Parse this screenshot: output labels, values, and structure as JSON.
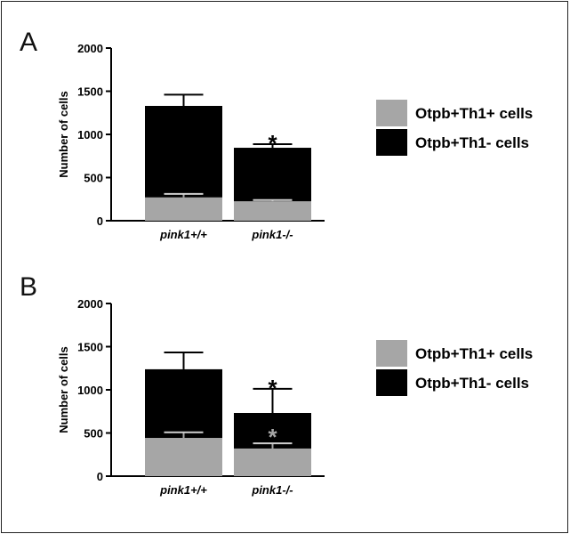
{
  "chart_data": [
    {
      "type": "bar",
      "stacked": true,
      "panel_label": "A",
      "ylabel": "Number of cells",
      "ylim": [
        0,
        2000
      ],
      "yticks": [
        "0",
        "500",
        "1000",
        "1500",
        "2000"
      ],
      "categories": [
        "pink1+/+",
        "pink1-/-"
      ],
      "series": [
        {
          "name": "Otpb+Th1+ cells",
          "color": "#a6a6a6",
          "values": [
            270,
            225
          ],
          "error_upper": [
            40,
            15
          ]
        },
        {
          "name": "Otpb+Th1- cells",
          "color": "#000000",
          "values": [
            1060,
            620
          ],
          "error_upper": [
            130,
            42
          ]
        }
      ],
      "annotations": [
        {
          "category": "pink1-/-",
          "text": "*",
          "over": "total",
          "color": "#000000"
        }
      ],
      "legend": "right"
    },
    {
      "type": "bar",
      "stacked": true,
      "panel_label": "B",
      "ylabel": "Number of cells",
      "ylim": [
        0,
        2000
      ],
      "yticks": [
        "0",
        "500",
        "1000",
        "1500",
        "2000"
      ],
      "categories": [
        "pink1+/+",
        "pink1-/-"
      ],
      "series": [
        {
          "name": "Otpb+Th1+ cells",
          "color": "#a6a6a6",
          "values": [
            443,
            320
          ],
          "error_upper": [
            65,
            60
          ]
        },
        {
          "name": "Otpb+Th1- cells",
          "color": "#000000",
          "values": [
            795,
            412
          ],
          "error_upper": [
            195,
            280
          ]
        }
      ],
      "annotations": [
        {
          "category": "pink1-/-",
          "text": "*",
          "over": "total",
          "color": "#000000"
        },
        {
          "category": "pink1-/-",
          "text": "*",
          "over": "Otpb+Th1+ cells",
          "color": "#a6a6a6"
        }
      ],
      "legend": "right"
    }
  ]
}
